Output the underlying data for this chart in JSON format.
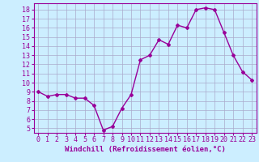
{
  "x": [
    0,
    1,
    2,
    3,
    4,
    5,
    6,
    7,
    8,
    9,
    10,
    11,
    12,
    13,
    14,
    15,
    16,
    17,
    18,
    19,
    20,
    21,
    22,
    23
  ],
  "y": [
    9,
    8.5,
    8.7,
    8.7,
    8.3,
    8.3,
    7.5,
    4.8,
    5.2,
    7.2,
    8.7,
    12.5,
    13.0,
    14.7,
    14.2,
    16.3,
    16.0,
    18.0,
    18.2,
    18.0,
    15.5,
    13.0,
    11.2,
    10.3
  ],
  "line_color": "#990099",
  "marker": "D",
  "marker_size": 2,
  "xlabel": "Windchill (Refroidissement éolien,°C)",
  "xlabel_fontsize": 6.5,
  "ylabel_ticks": [
    5,
    6,
    7,
    8,
    9,
    10,
    11,
    12,
    13,
    14,
    15,
    16,
    17,
    18
  ],
  "ylim": [
    4.5,
    18.7
  ],
  "xlim": [
    -0.5,
    23.5
  ],
  "bg_color": "#cceeff",
  "grid_color": "#aaaacc",
  "tick_fontsize": 6,
  "linewidth": 1.0
}
